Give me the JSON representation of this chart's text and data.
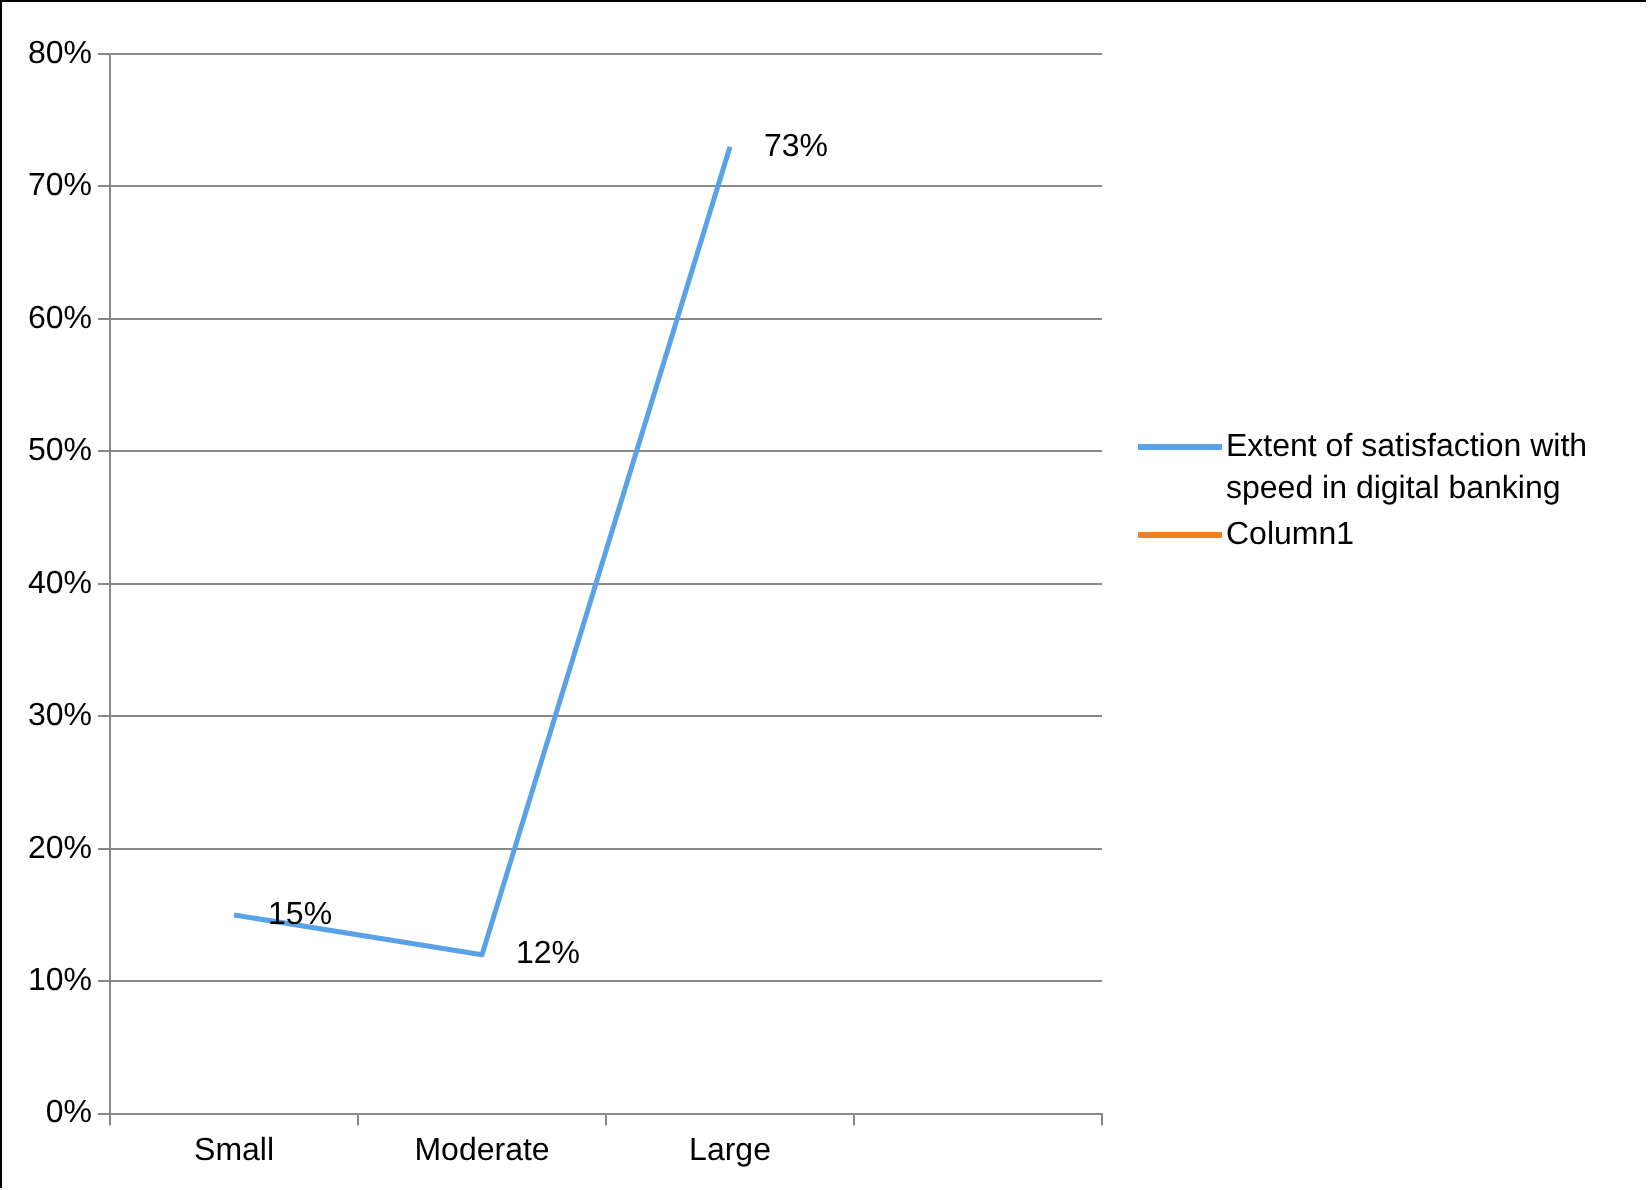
{
  "chart_data": {
    "type": "line",
    "categories": [
      "Small",
      "Moderate",
      "Large",
      null
    ],
    "series": [
      {
        "name": "Extent of satisfaction with speed in digital banking",
        "color": "#5aa2e6",
        "values": [
          15,
          12,
          73,
          null
        ],
        "value_labels": [
          "15%",
          "12%",
          "73%",
          null
        ]
      },
      {
        "name": "Column1",
        "color": "#f07f22",
        "values": [
          null,
          null,
          null,
          null
        ]
      }
    ],
    "ylim": [
      0,
      80
    ],
    "yticks": [
      {
        "value": 0,
        "label": "0%"
      },
      {
        "value": 10,
        "label": "10%"
      },
      {
        "value": 20,
        "label": "20%"
      },
      {
        "value": 30,
        "label": "30%"
      },
      {
        "value": 40,
        "label": "40%"
      },
      {
        "value": 50,
        "label": "50%"
      },
      {
        "value": 60,
        "label": "60%"
      },
      {
        "value": 70,
        "label": "70%"
      },
      {
        "value": 80,
        "label": "80%"
      }
    ],
    "grid": "y",
    "legend": "right",
    "marker": "none",
    "line_style": "solid"
  }
}
